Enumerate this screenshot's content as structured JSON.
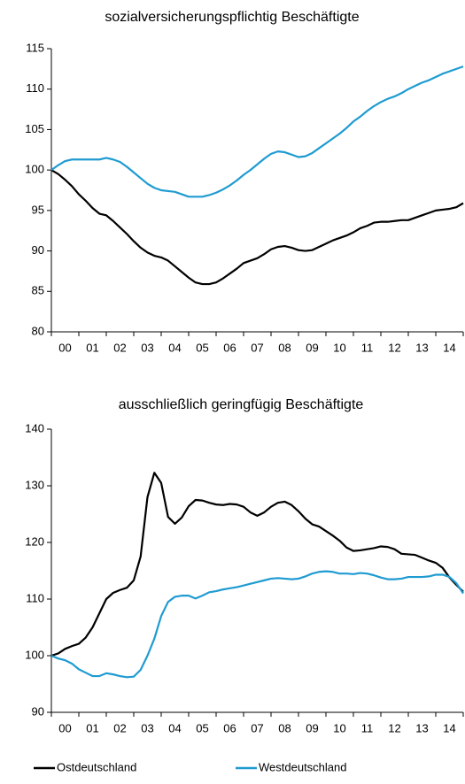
{
  "chart_data": [
    {
      "type": "line",
      "title": "sozialversicherungspflichtig Beschäftigte",
      "x": [
        0,
        0.25,
        0.5,
        0.75,
        1,
        1.25,
        1.5,
        1.75,
        2,
        2.25,
        2.5,
        2.75,
        3,
        3.25,
        3.5,
        3.75,
        4,
        4.25,
        4.5,
        4.75,
        5,
        5.25,
        5.5,
        5.75,
        6,
        6.25,
        6.5,
        6.75,
        7,
        7.25,
        7.5,
        7.75,
        8,
        8.25,
        8.5,
        8.75,
        9,
        9.25,
        9.5,
        9.75,
        10,
        10.25,
        10.5,
        10.75,
        11,
        11.25,
        11.5,
        11.75,
        12,
        12.25,
        12.5,
        12.75,
        13,
        13.25,
        13.5,
        13.75,
        14,
        14.25,
        14.5,
        14.75,
        15
      ],
      "series": [
        {
          "name": "Ostdeutschland",
          "color": "#000000",
          "values": [
            100,
            99.5,
            98.8,
            98,
            97,
            96.2,
            95.3,
            94.6,
            94.4,
            93.7,
            92.9,
            92.1,
            91.2,
            90.4,
            89.8,
            89.4,
            89.2,
            88.8,
            88.1,
            87.4,
            86.7,
            86.1,
            85.9,
            85.9,
            86.1,
            86.6,
            87.2,
            87.8,
            88.5,
            88.8,
            89.1,
            89.6,
            90.2,
            90.5,
            90.6,
            90.4,
            90.1,
            90.0,
            90.1,
            90.5,
            90.9,
            91.3,
            91.6,
            91.9,
            92.3,
            92.8,
            93.1,
            93.5,
            93.6,
            93.6,
            93.7,
            93.8,
            93.8,
            94.1,
            94.4,
            94.7,
            95.0,
            95.1,
            95.2,
            95.4,
            95.9
          ]
        },
        {
          "name": "Westdeutschland",
          "color": "#1f9bd1",
          "values": [
            100,
            100.6,
            101.1,
            101.3,
            101.3,
            101.3,
            101.3,
            101.3,
            101.5,
            101.3,
            101.0,
            100.4,
            99.7,
            99.0,
            98.3,
            97.8,
            97.5,
            97.4,
            97.3,
            97.0,
            96.7,
            96.7,
            96.7,
            96.9,
            97.2,
            97.6,
            98.1,
            98.7,
            99.4,
            100.0,
            100.7,
            101.4,
            102.0,
            102.3,
            102.2,
            101.9,
            101.6,
            101.7,
            102.1,
            102.7,
            103.3,
            103.9,
            104.5,
            105.2,
            106.0,
            106.6,
            107.3,
            107.9,
            108.4,
            108.8,
            109.1,
            109.5,
            110.0,
            110.4,
            110.8,
            111.1,
            111.5,
            111.9,
            112.2,
            112.5,
            112.8
          ]
        }
      ],
      "xlim": [
        0,
        15
      ],
      "xticks": [
        {
          "value": 0.5,
          "label": "00"
        },
        {
          "value": 1.5,
          "label": "01"
        },
        {
          "value": 2.5,
          "label": "02"
        },
        {
          "value": 3.5,
          "label": "03"
        },
        {
          "value": 4.5,
          "label": "04"
        },
        {
          "value": 5.5,
          "label": "05"
        },
        {
          "value": 6.5,
          "label": "06"
        },
        {
          "value": 7.5,
          "label": "07"
        },
        {
          "value": 8.5,
          "label": "08"
        },
        {
          "value": 9.5,
          "label": "09"
        },
        {
          "value": 10.5,
          "label": "10"
        },
        {
          "value": 11.5,
          "label": "11"
        },
        {
          "value": 12.5,
          "label": "12"
        },
        {
          "value": 13.5,
          "label": "13"
        },
        {
          "value": 14.5,
          "label": "14"
        }
      ],
      "ylim": [
        80,
        115
      ],
      "yticks": [
        80,
        85,
        90,
        95,
        100,
        105,
        110,
        115
      ],
      "grid": false
    },
    {
      "type": "line",
      "title": "ausschließlich geringfügig Beschäftigte",
      "x": [
        0,
        0.25,
        0.5,
        0.75,
        1,
        1.25,
        1.5,
        1.75,
        2,
        2.25,
        2.5,
        2.75,
        3,
        3.25,
        3.5,
        3.75,
        4,
        4.25,
        4.5,
        4.75,
        5,
        5.25,
        5.5,
        5.75,
        6,
        6.25,
        6.5,
        6.75,
        7,
        7.25,
        7.5,
        7.75,
        8,
        8.25,
        8.5,
        8.75,
        9,
        9.25,
        9.5,
        9.75,
        10,
        10.25,
        10.5,
        10.75,
        11,
        11.25,
        11.5,
        11.75,
        12,
        12.25,
        12.5,
        12.75,
        13,
        13.25,
        13.5,
        13.75,
        14,
        14.25,
        14.5,
        14.75,
        15
      ],
      "series": [
        {
          "name": "Ostdeutschland",
          "color": "#000000",
          "values": [
            100,
            100.4,
            101.2,
            101.7,
            102.1,
            103.2,
            105.0,
            107.5,
            110.0,
            111.1,
            111.6,
            112.0,
            113.3,
            117.5,
            128.0,
            132.3,
            130.5,
            124.5,
            123.3,
            124.4,
            126.4,
            127.5,
            127.4,
            127.0,
            126.7,
            126.6,
            126.8,
            126.7,
            126.3,
            125.3,
            124.7,
            125.3,
            126.3,
            127.0,
            127.2,
            126.6,
            125.5,
            124.2,
            123.2,
            122.8,
            122.0,
            121.2,
            120.3,
            119.1,
            118.5,
            118.6,
            118.8,
            119.0,
            119.3,
            119.2,
            118.8,
            118.0,
            117.9,
            117.8,
            117.3,
            116.8,
            116.4,
            115.5,
            113.8,
            112.5,
            111.3
          ]
        },
        {
          "name": "Westdeutschland",
          "color": "#1f9bd1",
          "values": [
            100,
            99.5,
            99.2,
            98.6,
            97.6,
            97.0,
            96.4,
            96.4,
            96.9,
            96.7,
            96.4,
            96.2,
            96.3,
            97.5,
            100.0,
            103.0,
            107.0,
            109.5,
            110.4,
            110.6,
            110.6,
            110.1,
            110.6,
            111.2,
            111.4,
            111.7,
            111.9,
            112.1,
            112.4,
            112.7,
            113.0,
            113.3,
            113.6,
            113.7,
            113.6,
            113.5,
            113.6,
            114.0,
            114.5,
            114.8,
            114.9,
            114.8,
            114.5,
            114.5,
            114.4,
            114.6,
            114.5,
            114.2,
            113.8,
            113.5,
            113.5,
            113.6,
            113.9,
            113.9,
            113.9,
            114.0,
            114.3,
            114.3,
            113.9,
            112.8,
            111.0
          ]
        }
      ],
      "xlim": [
        0,
        15
      ],
      "xticks": [
        {
          "value": 0.5,
          "label": "00"
        },
        {
          "value": 1.5,
          "label": "01"
        },
        {
          "value": 2.5,
          "label": "02"
        },
        {
          "value": 3.5,
          "label": "03"
        },
        {
          "value": 4.5,
          "label": "04"
        },
        {
          "value": 5.5,
          "label": "05"
        },
        {
          "value": 6.5,
          "label": "06"
        },
        {
          "value": 7.5,
          "label": "07"
        },
        {
          "value": 8.5,
          "label": "08"
        },
        {
          "value": 9.5,
          "label": "09"
        },
        {
          "value": 10.5,
          "label": "10"
        },
        {
          "value": 11.5,
          "label": "11"
        },
        {
          "value": 12.5,
          "label": "12"
        },
        {
          "value": 13.5,
          "label": "13"
        },
        {
          "value": 14.5,
          "label": "14"
        }
      ],
      "ylim": [
        90,
        140
      ],
      "yticks": [
        90,
        100,
        110,
        120,
        130,
        140
      ],
      "grid": false
    }
  ]
}
